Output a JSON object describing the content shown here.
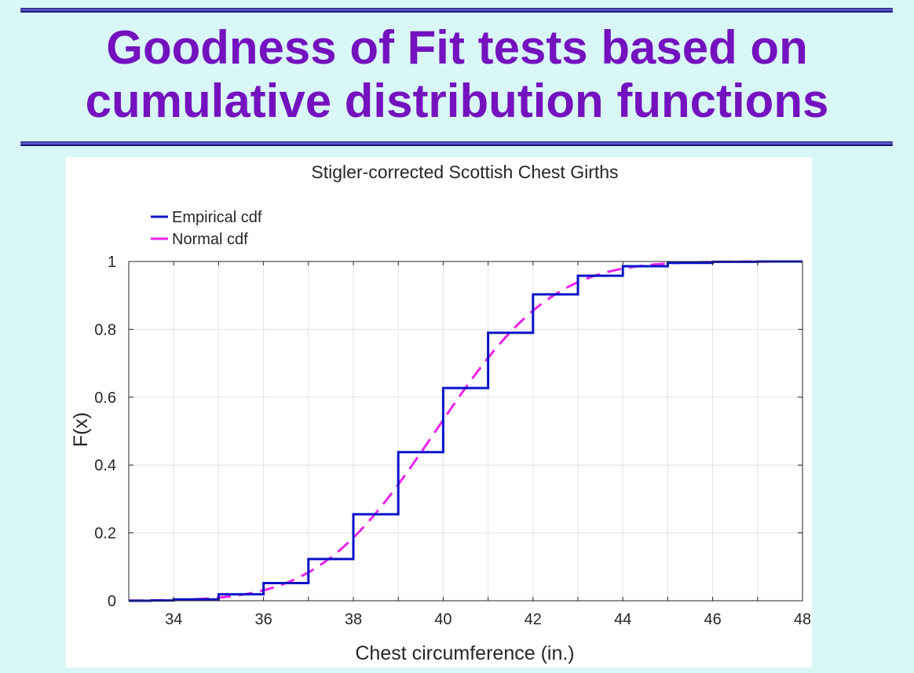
{
  "slide": {
    "title_line1": "Goodness of Fit tests based on",
    "title_line2": "cumulative distribution functions"
  },
  "colors": {
    "background": "#d9f7f7",
    "title": "#7412bf",
    "empirical": "#0a14c8",
    "normal": "#ee22ee",
    "grid": "#e3e3e3"
  },
  "chart_data": {
    "type": "line",
    "title": "Stigler-corrected Scottish Chest Girths",
    "xlabel": "Chest circumference (in.)",
    "ylabel": "F(x)",
    "xlim": [
      33,
      48
    ],
    "ylim": [
      0,
      1
    ],
    "xticks": [
      34,
      36,
      38,
      40,
      42,
      44,
      46,
      48
    ],
    "yticks": [
      0,
      0.2,
      0.4,
      0.6,
      0.8,
      1
    ],
    "ytick_labels": [
      "0",
      "0.2",
      "0.4",
      "0.6",
      "0.8",
      "1"
    ],
    "grid": true,
    "legend_position": "top-left, above axes",
    "series": [
      {
        "name": "Empirical cdf",
        "style": "solid",
        "kind": "step",
        "x": [
          33,
          33.5,
          34,
          35,
          36,
          37,
          38,
          39,
          40,
          41,
          42,
          43,
          44,
          45,
          46,
          47,
          48
        ],
        "y": [
          0,
          0.001,
          0.004,
          0.019,
          0.052,
          0.123,
          0.255,
          0.438,
          0.627,
          0.79,
          0.903,
          0.958,
          0.986,
          0.996,
          0.999,
          1.0,
          1.0
        ]
      },
      {
        "name": "Normal cdf",
        "style": "dashed",
        "kind": "normal",
        "mean": 39.83,
        "sd": 2.05
      }
    ]
  }
}
